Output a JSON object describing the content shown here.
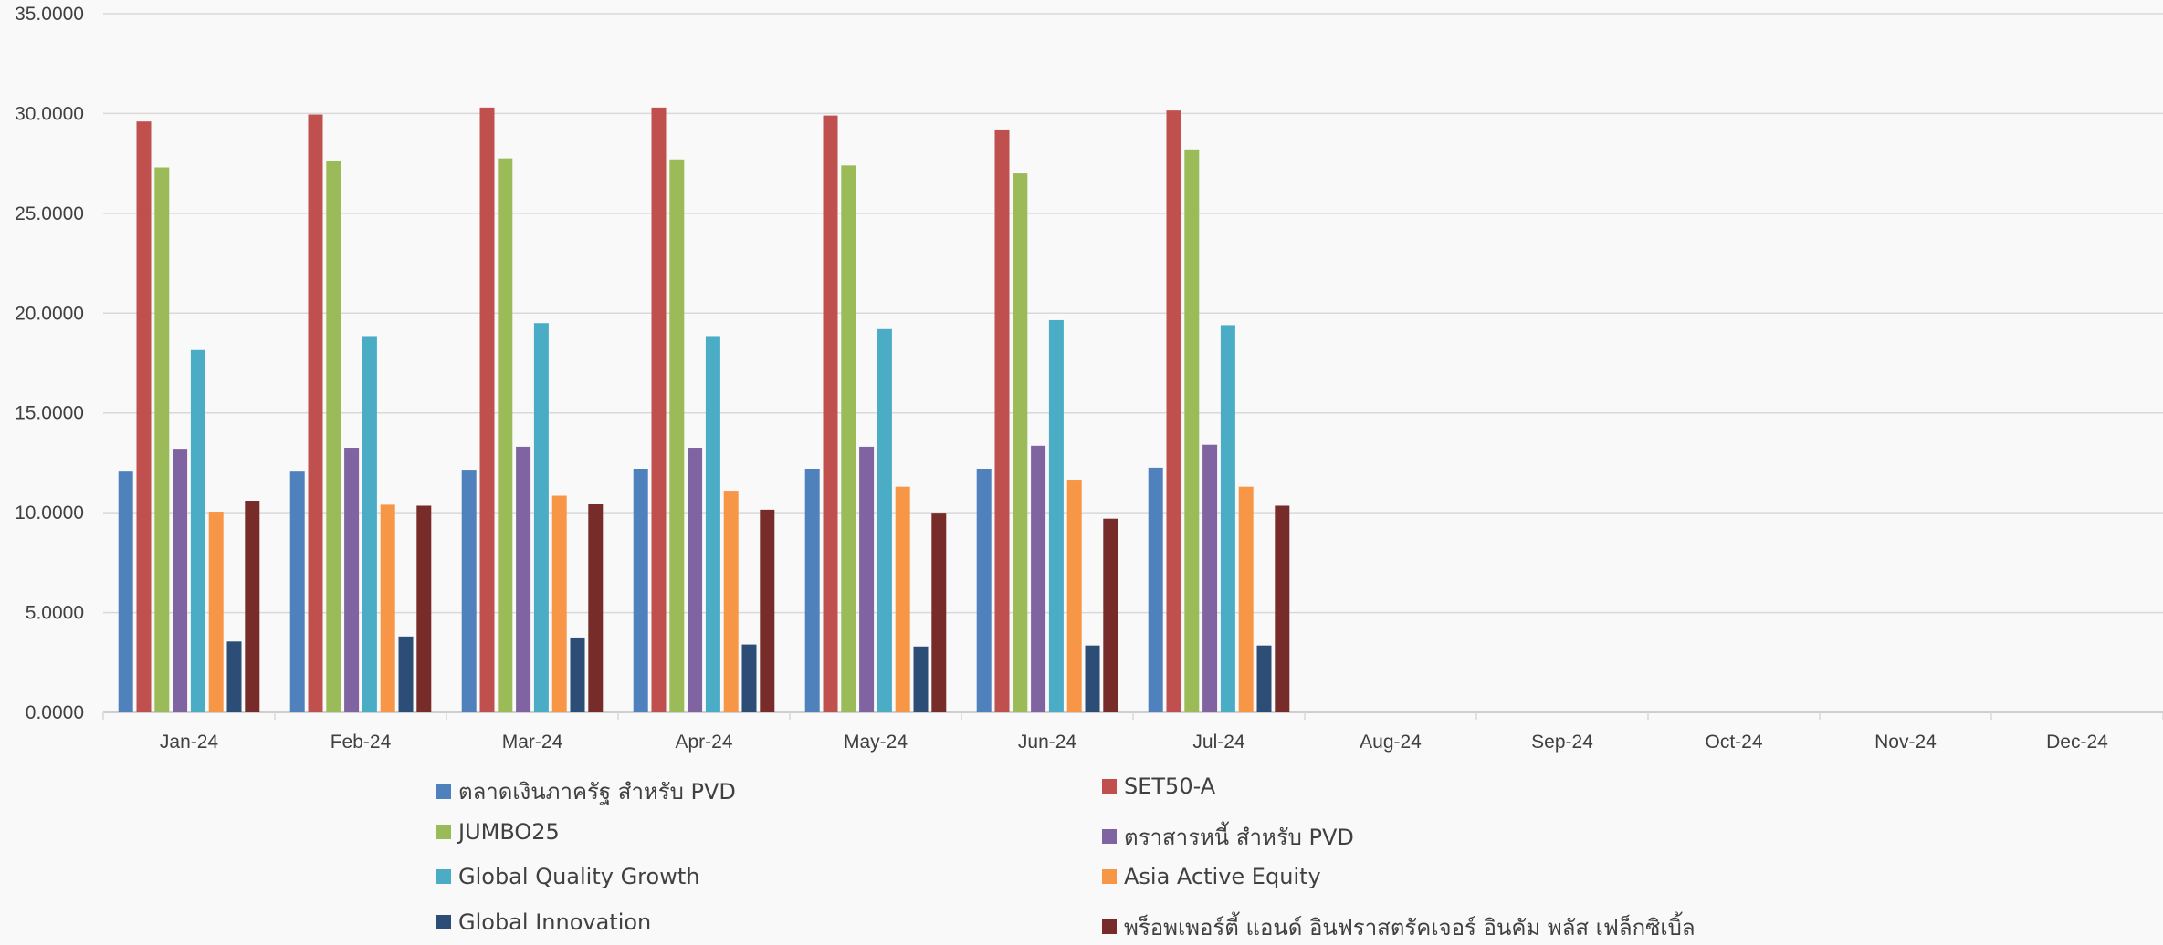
{
  "chart_data": {
    "type": "bar",
    "title": "",
    "xlabel": "",
    "ylabel": "",
    "ylim": [
      0,
      35
    ],
    "y_ticks": [
      "0.0000",
      "5.0000",
      "10.0000",
      "15.0000",
      "20.0000",
      "25.0000",
      "30.0000",
      "35.0000"
    ],
    "grid": "horizontal",
    "legend_position": "bottom",
    "categories": [
      "Jan-24",
      "Feb-24",
      "Mar-24",
      "Apr-24",
      "May-24",
      "Jun-24",
      "Jul-24",
      "Aug-24",
      "Sep-24",
      "Oct-24",
      "Nov-24",
      "Dec-24"
    ],
    "series": [
      {
        "name": "ตลาดเงินภาครัฐ สำหรับ PVD",
        "color": "#4f81bd",
        "values": [
          12.1,
          12.1,
          12.15,
          12.2,
          12.2,
          12.2,
          12.25,
          null,
          null,
          null,
          null,
          null
        ]
      },
      {
        "name": "SET50-A",
        "color": "#c0504d",
        "values": [
          29.6,
          29.95,
          30.3,
          30.3,
          29.9,
          29.2,
          30.15,
          null,
          null,
          null,
          null,
          null
        ]
      },
      {
        "name": "JUMBO25",
        "color": "#9bbb59",
        "values": [
          27.3,
          27.6,
          27.75,
          27.7,
          27.4,
          27.0,
          28.2,
          null,
          null,
          null,
          null,
          null
        ]
      },
      {
        "name": "ตราสารหนี้ สำหรับ PVD",
        "color": "#8064a2",
        "values": [
          13.2,
          13.25,
          13.3,
          13.25,
          13.3,
          13.35,
          13.4,
          null,
          null,
          null,
          null,
          null
        ]
      },
      {
        "name": "Global Quality Growth",
        "color": "#4bacc6",
        "values": [
          18.15,
          18.85,
          19.5,
          18.85,
          19.2,
          19.65,
          19.4,
          null,
          null,
          null,
          null,
          null
        ]
      },
      {
        "name": "Asia Active Equity",
        "color": "#f79646",
        "values": [
          10.05,
          10.4,
          10.85,
          11.1,
          11.3,
          11.65,
          11.3,
          null,
          null,
          null,
          null,
          null
        ]
      },
      {
        "name": "Global Innovation",
        "color": "#2c4d75",
        "values": [
          3.55,
          3.8,
          3.75,
          3.4,
          3.3,
          3.35,
          3.35,
          null,
          null,
          null,
          null,
          null
        ]
      },
      {
        "name": "พร็อพเพอร์ตี้ แอนด์ อินฟราสตรัคเจอร์ อินคัม พลัส เฟล็กซิเบิ้ล",
        "color": "#772c2a",
        "values": [
          10.6,
          10.35,
          10.45,
          10.15,
          10.0,
          9.7,
          10.35,
          null,
          null,
          null,
          null,
          null
        ]
      }
    ]
  }
}
